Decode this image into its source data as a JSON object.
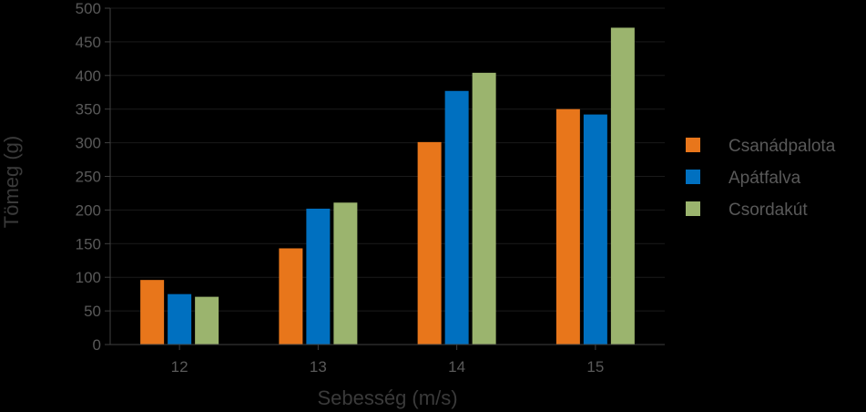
{
  "chart_data": {
    "type": "bar",
    "categories": [
      "12",
      "13",
      "14",
      "15"
    ],
    "series": [
      {
        "name": "Csanádpalota",
        "values": [
          96,
          143,
          301,
          350
        ],
        "color": "#e8761b"
      },
      {
        "name": "Apátfalva",
        "values": [
          75,
          202,
          377,
          342
        ],
        "color": "#0070c0"
      },
      {
        "name": "Csordakút",
        "values": [
          71,
          211,
          404,
          471
        ],
        "color": "#9bb46e"
      }
    ],
    "xlabel": "Sebesség (m/s)",
    "ylabel": "Tömeg (g)",
    "ylim": [
      0,
      500
    ],
    "yticks": [
      "0",
      "50",
      "100",
      "150",
      "200",
      "250",
      "300",
      "350",
      "400",
      "450",
      "500"
    ],
    "grid": true,
    "legend_position": "right",
    "colors": {
      "background": "#000000",
      "gridline": "#1a1a1a",
      "axis": "#404040",
      "text": "#595959"
    }
  }
}
